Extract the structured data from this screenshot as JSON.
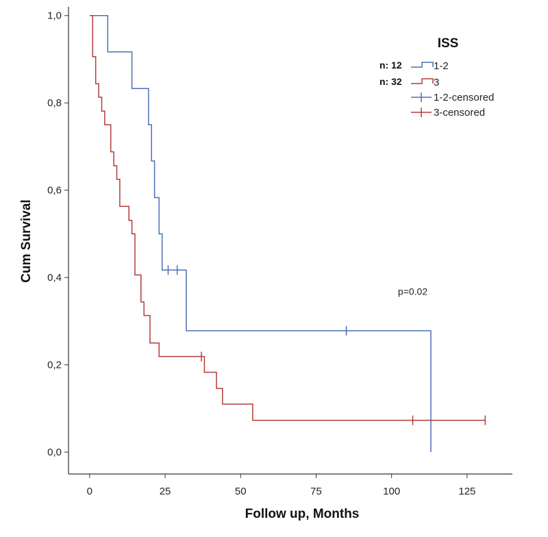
{
  "chart_data": {
    "type": "line",
    "subtype": "kaplan-meier step",
    "xlabel": "Follow up, Months",
    "ylabel": "Cum Survival",
    "xlim": [
      -7,
      140
    ],
    "ylim": [
      -0.05,
      1.02
    ],
    "x_ticks": [
      0,
      25,
      50,
      75,
      100,
      125
    ],
    "x_tick_labels": [
      "0",
      "25",
      "50",
      "75",
      "100",
      "125"
    ],
    "y_ticks": [
      0.0,
      0.2,
      0.4,
      0.6,
      0.8,
      1.0
    ],
    "y_tick_labels": [
      "0,0",
      "0,2",
      "0,4",
      "0,6",
      "0,8",
      "1,0"
    ],
    "grid": false,
    "legend": {
      "title": "ISS",
      "placement": "top-right",
      "entries": [
        {
          "label": "1-2",
          "n_label": "n: 12",
          "kind": "line",
          "color": "#4a6fb5"
        },
        {
          "label": "3",
          "n_label": "n: 32",
          "kind": "line",
          "color": "#b23a3a"
        },
        {
          "label": "1-2-censored",
          "kind": "censor",
          "color": "#4a6fb5"
        },
        {
          "label": "3-censored",
          "kind": "censor",
          "color": "#b23a3a"
        }
      ]
    },
    "annotations": [
      {
        "text": "p=0.02",
        "x": 107,
        "y": 0.36
      }
    ],
    "series": [
      {
        "name": "1-2",
        "color": "#4a6fb5",
        "points": [
          [
            0,
            1.0
          ],
          [
            6,
            0.917
          ],
          [
            14,
            0.833
          ],
          [
            19.5,
            0.75
          ],
          [
            20.5,
            0.667
          ],
          [
            21.5,
            0.583
          ],
          [
            23,
            0.5
          ],
          [
            24,
            0.417
          ],
          [
            32,
            0.278
          ],
          [
            113,
            0.0
          ]
        ],
        "end_x": 113,
        "censored": [
          [
            26,
            0.417
          ],
          [
            29,
            0.417
          ],
          [
            85,
            0.278
          ]
        ]
      },
      {
        "name": "3",
        "color": "#b23a3a",
        "points": [
          [
            0,
            1.0
          ],
          [
            1,
            0.906
          ],
          [
            2,
            0.844
          ],
          [
            3,
            0.813
          ],
          [
            4,
            0.781
          ],
          [
            5,
            0.75
          ],
          [
            7,
            0.688
          ],
          [
            8,
            0.656
          ],
          [
            9,
            0.625
          ],
          [
            10,
            0.563
          ],
          [
            13,
            0.531
          ],
          [
            14,
            0.5
          ],
          [
            15,
            0.406
          ],
          [
            17,
            0.344
          ],
          [
            18,
            0.313
          ],
          [
            20,
            0.25
          ],
          [
            23,
            0.219
          ],
          [
            38,
            0.183
          ],
          [
            42,
            0.146
          ],
          [
            44,
            0.11
          ],
          [
            54,
            0.073
          ]
        ],
        "end_x": 131,
        "censored": [
          [
            37,
            0.219
          ],
          [
            107,
            0.073
          ],
          [
            131,
            0.073
          ]
        ]
      }
    ]
  }
}
